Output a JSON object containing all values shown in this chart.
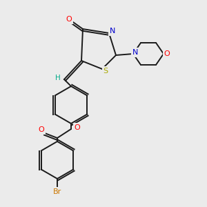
{
  "bg_color": "#ebebeb",
  "bond_color": "#1a1a1a",
  "figsize": [
    3.0,
    3.0
  ],
  "dpi": 100,
  "colors": {
    "O": "#ff0000",
    "N": "#0000cc",
    "S": "#aaaa00",
    "Br": "#cc7700",
    "H": "#00aa88"
  }
}
